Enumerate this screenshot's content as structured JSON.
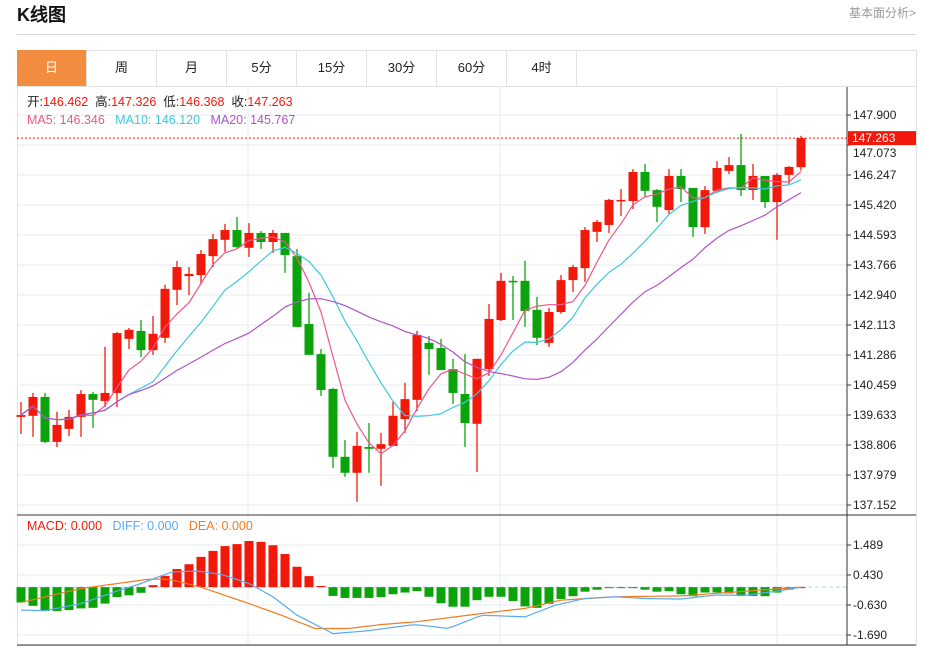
{
  "header": {
    "title": "K线图",
    "link": "基本面分析>"
  },
  "tabs": [
    {
      "label": "日",
      "active": true
    },
    {
      "label": "周"
    },
    {
      "label": "月"
    },
    {
      "label": "5分"
    },
    {
      "label": "15分"
    },
    {
      "label": "30分"
    },
    {
      "label": "60分"
    },
    {
      "label": "4时"
    }
  ],
  "legend": {
    "open_label": "开:",
    "open": "146.462",
    "high_label": "高:",
    "high": "147.326",
    "low_label": "低:",
    "low": "146.368",
    "close_label": "收:",
    "close": "147.263",
    "ma5": "MA5: 146.346",
    "ma10": "MA10: 146.120",
    "ma20": "MA20: 145.767"
  },
  "macd_legend": {
    "macd": "MACD: 0.000",
    "diff": "DIFF: 0.000",
    "dea": "DEA: 0.000"
  },
  "colors": {
    "up": "#f2190a",
    "down": "#0aa30a",
    "ma5": "#f0568a",
    "ma10": "#3cc8e0",
    "ma20": "#b054c8",
    "diff": "#5aaaf0",
    "dea": "#f47b20",
    "accent": "#f28c3e"
  },
  "chart_data": [
    {
      "type": "candlestick",
      "title": "K线图",
      "ylim": [
        137.152,
        147.9
      ],
      "yticks": [
        "147.900",
        "147.073",
        "146.247",
        "145.420",
        "144.593",
        "143.766",
        "142.940",
        "142.113",
        "141.286",
        "140.459",
        "139.633",
        "138.806",
        "137.979",
        "137.152"
      ],
      "last_price": "147.263",
      "ohlc": [
        [
          139.58,
          139.99,
          139.11,
          139.63
        ],
        [
          139.61,
          140.24,
          139.03,
          140.13
        ],
        [
          140.13,
          140.24,
          138.86,
          138.89
        ],
        [
          138.89,
          139.72,
          138.75,
          139.36
        ],
        [
          139.25,
          139.77,
          139.05,
          139.58
        ],
        [
          139.58,
          140.32,
          139.03,
          140.21
        ],
        [
          140.21,
          140.27,
          139.28,
          140.05
        ],
        [
          140.02,
          141.51,
          139.85,
          140.24
        ],
        [
          140.24,
          141.92,
          139.85,
          141.89
        ],
        [
          141.73,
          142.03,
          141.45,
          141.98
        ],
        [
          141.95,
          142.25,
          141.23,
          141.42
        ],
        [
          141.42,
          142.36,
          141.29,
          141.87
        ],
        [
          141.76,
          143.22,
          141.62,
          143.11
        ],
        [
          143.08,
          143.88,
          142.66,
          143.71
        ],
        [
          143.46,
          143.71,
          142.94,
          143.52
        ],
        [
          143.49,
          144.18,
          143.27,
          144.07
        ],
        [
          144.01,
          144.62,
          143.71,
          144.48
        ],
        [
          144.46,
          144.9,
          144.13,
          144.73
        ],
        [
          144.73,
          145.09,
          144.24,
          144.26
        ],
        [
          144.24,
          144.92,
          143.99,
          144.65
        ],
        [
          144.65,
          144.7,
          144.21,
          144.4
        ],
        [
          144.4,
          144.73,
          144.1,
          144.65
        ],
        [
          144.65,
          144.65,
          143.55,
          144.04
        ],
        [
          144.01,
          144.21,
          142.06,
          142.06
        ],
        [
          142.14,
          143.0,
          141.29,
          141.29
        ],
        [
          141.31,
          141.45,
          140.16,
          140.32
        ],
        [
          140.35,
          140.38,
          138.17,
          138.48
        ],
        [
          138.48,
          138.94,
          137.93,
          138.04
        ],
        [
          138.04,
          139.17,
          137.24,
          138.78
        ],
        [
          138.75,
          139.41,
          138.04,
          138.7
        ],
        [
          138.7,
          139.14,
          137.68,
          138.83
        ],
        [
          138.78,
          139.99,
          138.78,
          139.61
        ],
        [
          139.52,
          140.52,
          139.14,
          140.07
        ],
        [
          140.05,
          141.95,
          139.74,
          141.84
        ],
        [
          141.62,
          141.81,
          140.74,
          141.45
        ],
        [
          141.48,
          141.73,
          140.87,
          140.87
        ],
        [
          140.9,
          141.18,
          139.94,
          140.24
        ],
        [
          140.21,
          141.31,
          138.75,
          139.41
        ],
        [
          139.39,
          141.18,
          138.06,
          141.18
        ],
        [
          140.9,
          142.69,
          140.71,
          142.28
        ],
        [
          142.25,
          143.55,
          142.22,
          143.33
        ],
        [
          143.33,
          143.46,
          142.25,
          143.3
        ],
        [
          143.33,
          143.88,
          142.06,
          142.5
        ],
        [
          142.53,
          142.89,
          141.56,
          141.76
        ],
        [
          141.62,
          142.58,
          141.51,
          142.47
        ],
        [
          142.47,
          143.49,
          142.42,
          143.35
        ],
        [
          143.35,
          143.77,
          143.02,
          143.71
        ],
        [
          143.68,
          144.81,
          143.3,
          144.73
        ],
        [
          144.68,
          145.01,
          144.4,
          144.95
        ],
        [
          144.87,
          145.59,
          144.65,
          145.56
        ],
        [
          145.53,
          145.86,
          145.12,
          145.56
        ],
        [
          145.53,
          146.41,
          145.31,
          146.33
        ],
        [
          146.33,
          146.55,
          145.64,
          145.81
        ],
        [
          145.83,
          145.86,
          144.95,
          145.37
        ],
        [
          145.28,
          146.41,
          145.17,
          146.22
        ],
        [
          146.22,
          146.41,
          145.5,
          145.86
        ],
        [
          145.89,
          145.89,
          144.54,
          144.81
        ],
        [
          144.81,
          145.94,
          144.62,
          145.83
        ],
        [
          145.81,
          146.63,
          145.75,
          146.44
        ],
        [
          146.36,
          146.74,
          146.27,
          146.52
        ],
        [
          146.52,
          147.38,
          145.67,
          145.83
        ],
        [
          145.83,
          146.55,
          145.56,
          146.22
        ],
        [
          146.22,
          146.22,
          145.34,
          145.5
        ],
        [
          145.5,
          146.3,
          144.46,
          146.25
        ],
        [
          146.25,
          146.49,
          146.0,
          146.47
        ],
        [
          146.462,
          147.326,
          146.368,
          147.263
        ]
      ],
      "ma_periods": [
        5,
        10,
        20
      ]
    },
    {
      "type": "bar+line",
      "title": "MACD",
      "ylim": [
        -1.69,
        1.489
      ],
      "yticks": [
        "1.489",
        "0.430",
        "-0.630",
        "-1.690"
      ],
      "macd": [
        -0.54,
        -0.66,
        -0.84,
        -0.84,
        -0.81,
        -0.75,
        -0.73,
        -0.58,
        -0.35,
        -0.29,
        -0.2,
        0.07,
        0.4,
        0.64,
        0.81,
        1.07,
        1.28,
        1.45,
        1.52,
        1.63,
        1.6,
        1.48,
        1.17,
        0.72,
        0.39,
        0.04,
        -0.31,
        -0.38,
        -0.38,
        -0.38,
        -0.35,
        -0.25,
        -0.19,
        -0.14,
        -0.34,
        -0.57,
        -0.69,
        -0.69,
        -0.46,
        -0.34,
        -0.34,
        -0.49,
        -0.68,
        -0.73,
        -0.59,
        -0.42,
        -0.32,
        -0.16,
        -0.09,
        -0.02,
        -0.01,
        -0.01,
        -0.09,
        -0.16,
        -0.14,
        -0.25,
        -0.32,
        -0.19,
        -0.19,
        -0.22,
        -0.31,
        -0.31,
        -0.32,
        -0.19,
        -0.09,
        0.0
      ],
      "diff_points": [
        [
          0,
          -0.81
        ],
        [
          2,
          -0.83
        ],
        [
          5,
          -0.58
        ],
        [
          8,
          -0.14
        ],
        [
          10,
          0.13
        ],
        [
          12.6,
          0.54
        ],
        [
          14.8,
          0.57
        ],
        [
          16.7,
          0.45
        ],
        [
          19,
          0.13
        ],
        [
          21,
          -0.34
        ],
        [
          23,
          -0.99
        ],
        [
          26,
          -1.64
        ],
        [
          28.7,
          -1.55
        ],
        [
          32.8,
          -1.32
        ],
        [
          35.6,
          -1.46
        ],
        [
          38.4,
          -0.99
        ],
        [
          42,
          -1.05
        ],
        [
          44.5,
          -0.64
        ],
        [
          47,
          -0.4
        ],
        [
          49.5,
          -0.34
        ],
        [
          52,
          -0.4
        ],
        [
          55,
          -0.42
        ],
        [
          57.8,
          -0.28
        ],
        [
          60.5,
          -0.28
        ],
        [
          63,
          -0.14
        ],
        [
          65,
          0
        ]
      ],
      "dea_points": [
        [
          0,
          -0.54
        ],
        [
          5,
          -0.05
        ],
        [
          10.6,
          0.28
        ],
        [
          12.3,
          0.28
        ],
        [
          15,
          0
        ],
        [
          19,
          -0.58
        ],
        [
          21.7,
          -0.99
        ],
        [
          24.5,
          -1.46
        ],
        [
          27.3,
          -1.46
        ],
        [
          30,
          -1.32
        ],
        [
          33,
          -1.22
        ],
        [
          38.4,
          -0.93
        ],
        [
          42,
          -0.75
        ],
        [
          45,
          -0.46
        ],
        [
          49.5,
          -0.34
        ],
        [
          55,
          -0.31
        ],
        [
          60.5,
          -0.14
        ],
        [
          65,
          0
        ]
      ]
    }
  ]
}
